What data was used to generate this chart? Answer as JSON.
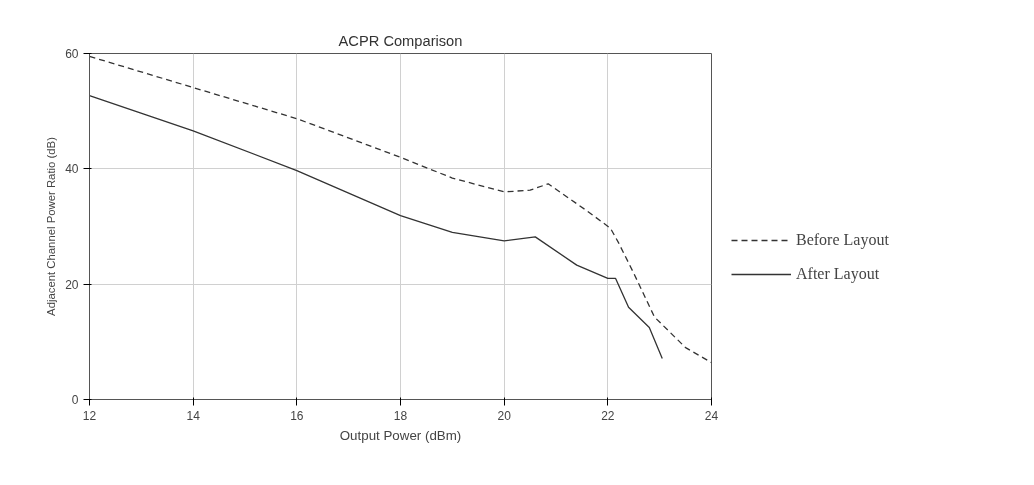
{
  "chart_data": {
    "type": "line",
    "title": "ACPR Comparison",
    "xlabel": "Output Power (dBm)",
    "ylabel": "Adjacent Channel Power Ratio (dB)",
    "xlim": [
      12,
      24
    ],
    "xticks": [
      12,
      14,
      16,
      18,
      20,
      22,
      24
    ],
    "ylim": [
      0,
      60
    ],
    "yticks": [
      0,
      20,
      40,
      60
    ],
    "grid": true,
    "legend": "right",
    "marker": "none",
    "series": [
      {
        "name": "Before Layout",
        "color": "#333333",
        "line_style": "dashed",
        "x": [
          12,
          14,
          16,
          18,
          19,
          20,
          20.5,
          20.85,
          21.6,
          22.05,
          22.2,
          22.5,
          22.9,
          23.5,
          24
        ],
        "values": [
          59.5,
          54.1,
          48.7,
          42,
          38.4,
          36,
          36.3,
          37.4,
          32.7,
          29.7,
          27.3,
          21.9,
          14.3,
          9,
          6.4
        ]
      },
      {
        "name": "After Layout",
        "color": "#333333",
        "line_style": "solid",
        "x": [
          12,
          14,
          16,
          18,
          19,
          20,
          20.6,
          21.4,
          22,
          22.15,
          22.4,
          22.8,
          23.05
        ],
        "values": [
          52.7,
          46.6,
          39.7,
          31.9,
          29,
          27.5,
          28.2,
          23.3,
          21,
          21,
          16,
          12.5,
          7.1
        ]
      }
    ]
  }
}
